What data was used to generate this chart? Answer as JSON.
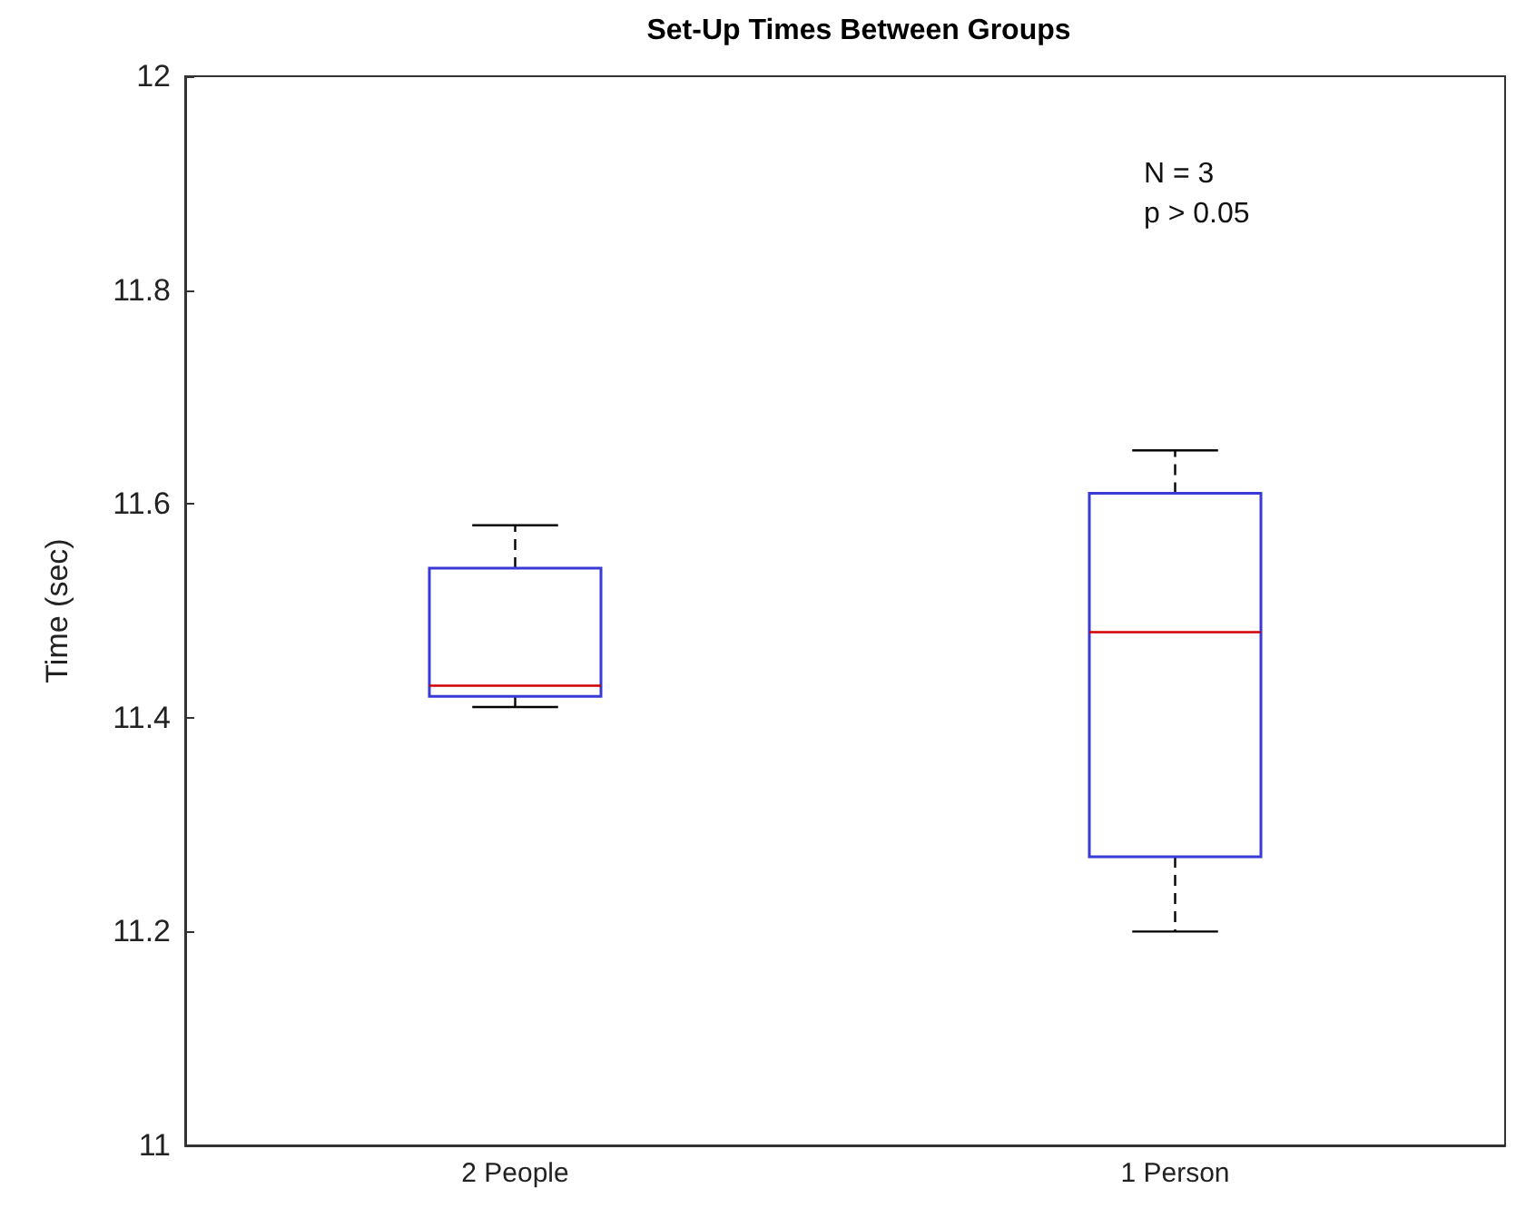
{
  "chart_data": {
    "type": "box",
    "title": "Set-Up Times Between Groups",
    "ylabel": "Time (sec)",
    "categories": [
      "2 People",
      "1 Person"
    ],
    "boxes": [
      {
        "low": 11.41,
        "q1": 11.42,
        "median": 11.43,
        "q3": 11.54,
        "high": 11.58
      },
      {
        "low": 11.2,
        "q1": 11.27,
        "median": 11.48,
        "q3": 11.61,
        "high": 11.65
      }
    ],
    "color": "#3a3ad6",
    "ylim": [
      11,
      12
    ],
    "yticks": [
      11,
      11.2,
      11.4,
      11.6,
      11.8,
      12
    ],
    "annotations": [
      "N = 3",
      "p > 0.05"
    ],
    "grid": false
  }
}
